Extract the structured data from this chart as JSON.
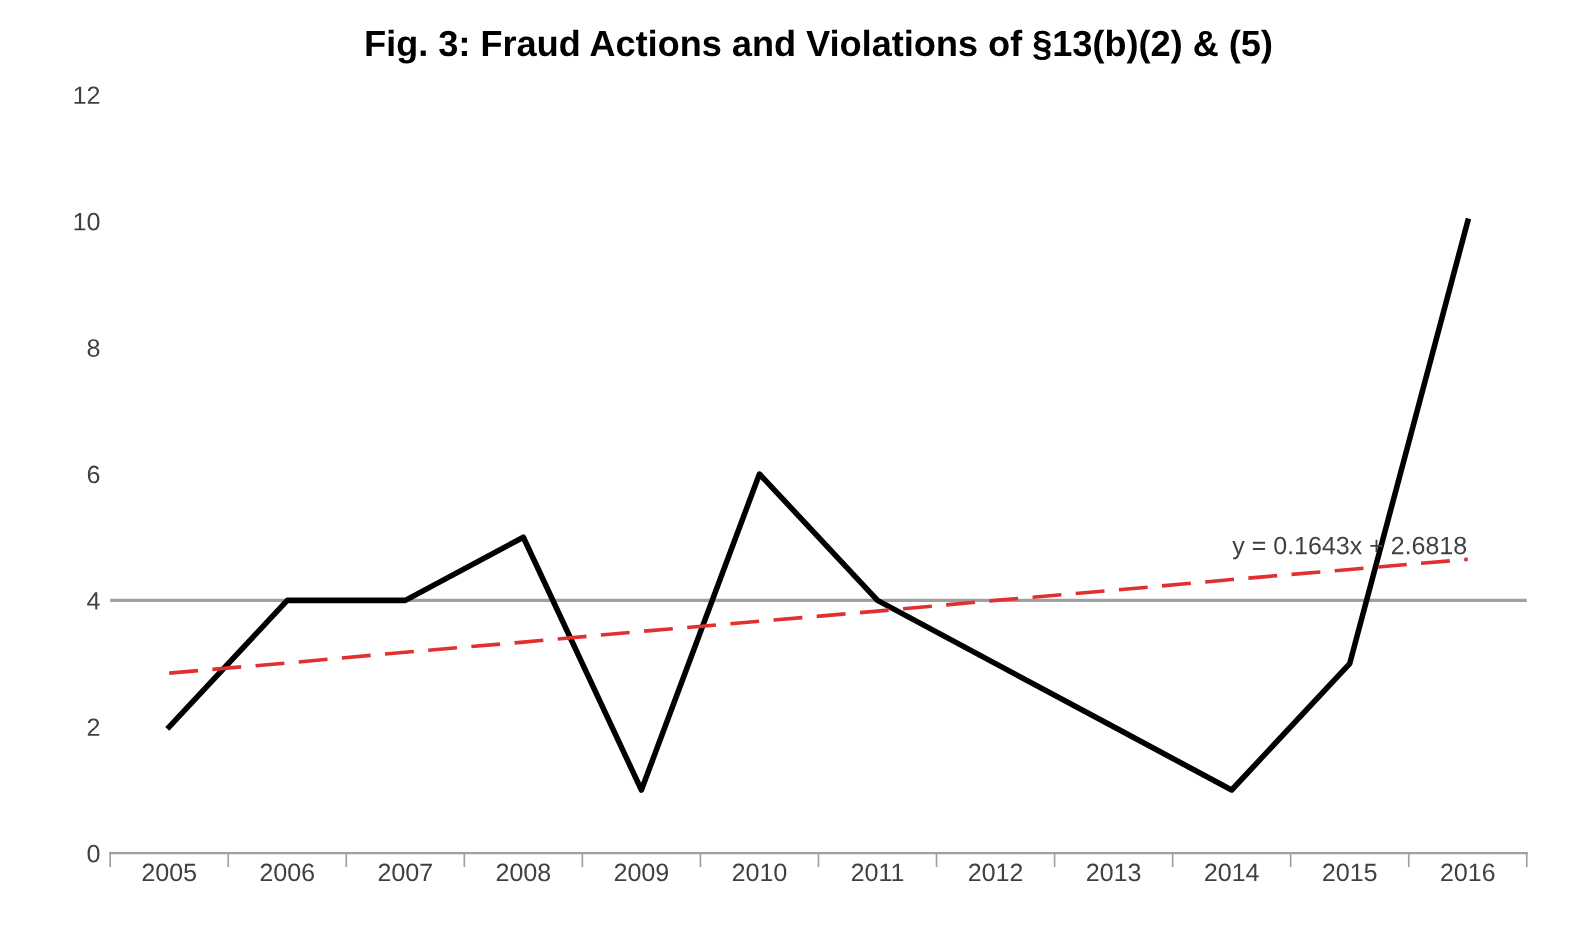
{
  "chart_data": {
    "type": "line",
    "title": "Fig. 3: Fraud Actions and Violations of §13(b)(2) & (5)",
    "categories": [
      "2005",
      "2006",
      "2007",
      "2008",
      "2009",
      "2010",
      "2011",
      "2012",
      "2013",
      "2014",
      "2015",
      "2016"
    ],
    "series": [
      {
        "color": "#000000",
        "values": [
          2,
          4,
          4,
          5,
          1,
          6,
          4,
          3,
          2,
          1,
          3,
          10
        ]
      },
      {
        "type": "line",
        "color": "#e03030",
        "line_style": "dashed",
        "values": [
          2.85,
          3.01,
          3.18,
          3.34,
          3.51,
          3.67,
          3.83,
          4.0,
          4.16,
          4.33,
          4.49,
          4.65
        ]
      }
    ],
    "ylim": [
      0,
      12
    ],
    "yticks": [
      0,
      2,
      4,
      6,
      8,
      10,
      12
    ],
    "ref_lines": [
      {
        "axis": "y",
        "value": 4,
        "color": "#a0a0a0"
      }
    ],
    "annotations": [
      {
        "text": "y = 0.1643x + 2.6818",
        "x": "2015",
        "y": 4.65
      }
    ],
    "grid": false,
    "legend": false,
    "marker": "none",
    "line_style": "solid"
  }
}
